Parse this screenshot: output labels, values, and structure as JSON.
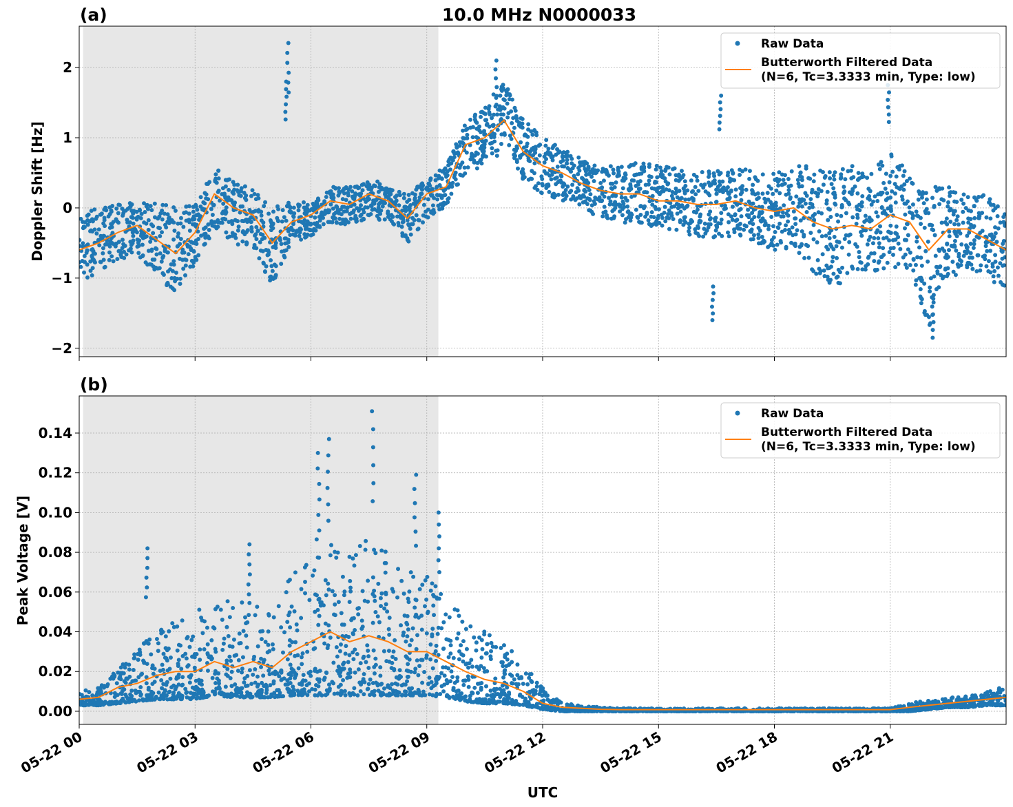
{
  "chart_data": [
    {
      "type": "scatter",
      "panel_label": "(a)",
      "title": "10.0 MHz N0000033",
      "xlabel": "",
      "ylabel": "Doppler Shift [Hz]",
      "xlim_hours": [
        0,
        24
      ],
      "ylim": [
        -2.12,
        2.59
      ],
      "yticks": [
        -2,
        -1,
        0,
        1,
        2
      ],
      "ytick_labels": [
        "−2",
        "−1",
        "0",
        "1",
        "2"
      ],
      "grid": true,
      "shaded_region_hours": [
        0.1,
        9.3
      ],
      "legend": {
        "placement": "top-right",
        "entries": [
          "Raw Data",
          "Butterworth Filtered Data",
          "(N=6, Tc=3.3333 min, Type: low)"
        ]
      },
      "x_hours": [
        0,
        0.5,
        1,
        1.5,
        2,
        2.5,
        3,
        3.5,
        4,
        4.5,
        5,
        5.5,
        6,
        6.5,
        7,
        7.5,
        8,
        8.5,
        9,
        9.5,
        10,
        10.5,
        11,
        11.5,
        12,
        12.5,
        13,
        13.5,
        14,
        14.5,
        15,
        15.5,
        16,
        16.5,
        17,
        17.5,
        18,
        18.5,
        19,
        19.5,
        20,
        20.5,
        21,
        21.5,
        22,
        22.5,
        23,
        23.5,
        24
      ],
      "series": [
        {
          "name": "Butterworth Filtered Data",
          "kind": "line",
          "values": [
            -0.6,
            -0.5,
            -0.35,
            -0.25,
            -0.45,
            -0.65,
            -0.35,
            0.2,
            0.0,
            -0.1,
            -0.5,
            -0.2,
            -0.1,
            0.1,
            0.05,
            0.2,
            0.1,
            -0.15,
            0.2,
            0.3,
            0.9,
            1.0,
            1.25,
            0.8,
            0.6,
            0.5,
            0.35,
            0.25,
            0.2,
            0.2,
            0.1,
            0.1,
            0.05,
            0.05,
            0.1,
            0.0,
            -0.05,
            0.0,
            -0.2,
            -0.3,
            -0.25,
            -0.3,
            -0.1,
            -0.2,
            -0.6,
            -0.3,
            -0.3,
            -0.45,
            -0.6
          ]
        },
        {
          "name": "Raw Data",
          "kind": "scatter-band",
          "lower": [
            -1.1,
            -0.9,
            -0.75,
            -0.65,
            -1.0,
            -1.2,
            -0.8,
            -0.3,
            -0.5,
            -0.6,
            -1.1,
            -0.5,
            -0.4,
            -0.2,
            -0.25,
            -0.15,
            -0.2,
            -0.5,
            -0.15,
            0.0,
            0.5,
            0.6,
            0.8,
            0.4,
            0.2,
            0.1,
            0.0,
            -0.15,
            -0.2,
            -0.25,
            -0.3,
            -0.35,
            -0.4,
            -0.45,
            -0.4,
            -0.5,
            -0.6,
            -0.6,
            -0.9,
            -1.2,
            -0.9,
            -1.0,
            -0.8,
            -1.0,
            -1.7,
            -1.0,
            -0.9,
            -1.0,
            -1.2
          ],
          "upper": [
            -0.1,
            0.0,
            0.05,
            0.1,
            0.1,
            0.0,
            0.1,
            0.6,
            0.4,
            0.3,
            0.0,
            0.1,
            0.1,
            0.3,
            0.3,
            0.4,
            0.35,
            0.2,
            0.4,
            0.6,
            1.2,
            1.5,
            1.8,
            1.3,
            1.0,
            0.85,
            0.7,
            0.6,
            0.6,
            0.65,
            0.6,
            0.6,
            0.5,
            0.55,
            0.6,
            0.5,
            0.5,
            0.6,
            0.7,
            0.5,
            0.6,
            0.5,
            0.8,
            0.5,
            0.3,
            0.3,
            0.2,
            0.2,
            -0.1
          ]
        }
      ],
      "outliers": [
        {
          "x": 5.4,
          "y": 2.35
        },
        {
          "x": 5.35,
          "y": 1.8
        },
        {
          "x": 10.8,
          "y": 2.1
        },
        {
          "x": 16.4,
          "y": -1.6
        },
        {
          "x": 16.6,
          "y": 1.6
        },
        {
          "x": 20.95,
          "y": 1.75
        },
        {
          "x": 22.1,
          "y": -1.85
        }
      ]
    },
    {
      "type": "scatter",
      "panel_label": "(b)",
      "xlabel": "UTC",
      "ylabel": "Peak Voltage [V]",
      "xlim_hours": [
        0,
        24
      ],
      "xticks_hours": [
        0,
        3,
        6,
        9,
        12,
        15,
        18,
        21
      ],
      "xtick_labels": [
        "05-22 00",
        "05-22 03",
        "05-22 06",
        "05-22 09",
        "05-22 12",
        "05-22 15",
        "05-22 18",
        "05-22 21"
      ],
      "ylim": [
        -0.0066,
        0.1587
      ],
      "yticks": [
        0,
        0.02,
        0.04,
        0.06,
        0.08,
        0.1,
        0.12,
        0.14
      ],
      "ytick_labels": [
        "0.00",
        "0.02",
        "0.04",
        "0.06",
        "0.08",
        "0.10",
        "0.12",
        "0.14"
      ],
      "grid": true,
      "shaded_region_hours": [
        0.1,
        9.3
      ],
      "legend": {
        "placement": "top-right",
        "entries": [
          "Raw Data",
          "Butterworth Filtered Data",
          "(N=6, Tc=3.3333 min, Type: low)"
        ]
      },
      "x_hours": [
        0,
        0.5,
        1,
        1.5,
        2,
        2.5,
        3,
        3.5,
        4,
        4.5,
        5,
        5.5,
        6,
        6.5,
        7,
        7.5,
        8,
        8.5,
        9,
        9.5,
        10,
        10.5,
        11,
        11.5,
        12,
        12.5,
        13,
        13.5,
        14,
        14.5,
        15,
        15.5,
        16,
        16.5,
        17,
        17.5,
        18,
        18.5,
        19,
        19.5,
        20,
        20.5,
        21,
        21.5,
        22,
        22.5,
        23,
        23.5,
        24
      ],
      "series": [
        {
          "name": "Butterworth Filtered Data",
          "kind": "line",
          "values": [
            0.006,
            0.007,
            0.012,
            0.014,
            0.018,
            0.02,
            0.02,
            0.025,
            0.022,
            0.025,
            0.022,
            0.03,
            0.035,
            0.04,
            0.035,
            0.038,
            0.035,
            0.03,
            0.03,
            0.025,
            0.02,
            0.016,
            0.014,
            0.01,
            0.004,
            0.002,
            0.0015,
            0.001,
            0.0008,
            0.0008,
            0.0008,
            0.0008,
            0.0008,
            0.0008,
            0.0008,
            0.0008,
            0.0008,
            0.0008,
            0.0008,
            0.0008,
            0.0008,
            0.0008,
            0.0008,
            0.002,
            0.003,
            0.004,
            0.005,
            0.006,
            0.007
          ]
        },
        {
          "name": "Raw Data",
          "kind": "scatter-band",
          "lower": [
            0.003,
            0.003,
            0.004,
            0.005,
            0.006,
            0.006,
            0.006,
            0.008,
            0.007,
            0.007,
            0.007,
            0.008,
            0.008,
            0.008,
            0.008,
            0.008,
            0.008,
            0.008,
            0.008,
            0.007,
            0.005,
            0.004,
            0.004,
            0.003,
            0.001,
            0.0,
            0.0,
            0.0,
            0.0,
            0.0,
            0.0,
            0.0,
            0.0,
            0.0,
            0.0,
            0.0,
            0.0,
            0.0,
            0.0,
            0.0,
            0.0,
            0.0,
            0.0,
            0.0,
            0.001,
            0.002,
            0.002,
            0.003,
            0.003
          ],
          "upper": [
            0.01,
            0.012,
            0.022,
            0.03,
            0.045,
            0.045,
            0.05,
            0.06,
            0.055,
            0.06,
            0.05,
            0.07,
            0.085,
            0.09,
            0.08,
            0.09,
            0.08,
            0.07,
            0.07,
            0.06,
            0.045,
            0.04,
            0.035,
            0.025,
            0.012,
            0.004,
            0.003,
            0.002,
            0.0015,
            0.0015,
            0.0015,
            0.0015,
            0.0015,
            0.0015,
            0.0015,
            0.0015,
            0.0015,
            0.0015,
            0.0015,
            0.0015,
            0.0015,
            0.0015,
            0.0015,
            0.004,
            0.006,
            0.007,
            0.008,
            0.01,
            0.014
          ]
        }
      ],
      "outliers": [
        {
          "x": 1.75,
          "y": 0.082
        },
        {
          "x": 6.45,
          "y": 0.137
        },
        {
          "x": 6.2,
          "y": 0.13
        },
        {
          "x": 7.6,
          "y": 0.151
        },
        {
          "x": 8.7,
          "y": 0.119
        },
        {
          "x": 9.3,
          "y": 0.1
        },
        {
          "x": 4.4,
          "y": 0.084
        }
      ]
    }
  ],
  "colors": {
    "raw": "#1f77b4",
    "filtered": "#ff7f0e",
    "shade": "#e7e7e7",
    "grid": "#b0b0b0"
  }
}
